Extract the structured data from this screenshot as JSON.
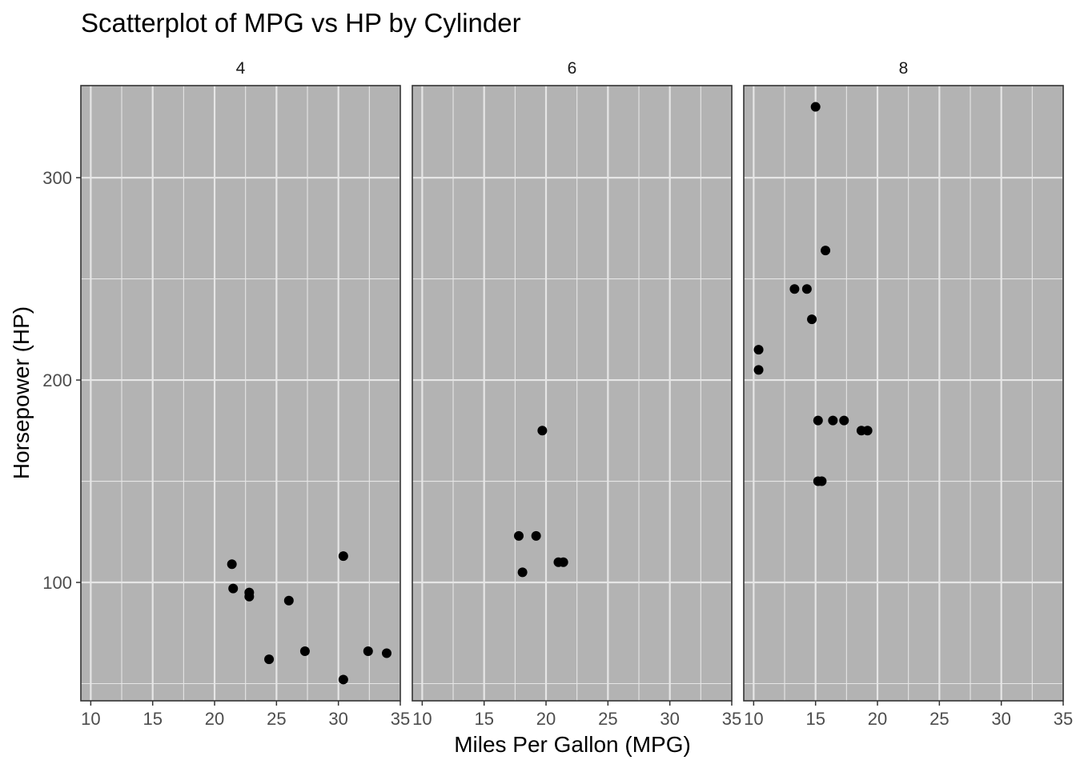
{
  "chart_data": {
    "type": "scatter",
    "title": "Scatterplot of MPG vs HP by Cylinder",
    "xlabel": "Miles Per Gallon (MPG)",
    "ylabel": "Horsepower (HP)",
    "xlim": [
      9.2,
      35.0
    ],
    "ylim": [
      41.5,
      345.5
    ],
    "x_ticks": [
      10,
      15,
      20,
      25,
      30,
      35
    ],
    "y_ticks": [
      100,
      200,
      300
    ],
    "grid": true,
    "colors": {
      "panel": "#b3b3b3",
      "grid": "#e6e6e6",
      "point": "#000000"
    },
    "facets": [
      {
        "label": "4",
        "points": [
          {
            "x": 22.8,
            "y": 93
          },
          {
            "x": 24.4,
            "y": 62
          },
          {
            "x": 22.8,
            "y": 95
          },
          {
            "x": 32.4,
            "y": 66
          },
          {
            "x": 30.4,
            "y": 52
          },
          {
            "x": 33.9,
            "y": 65
          },
          {
            "x": 21.5,
            "y": 97
          },
          {
            "x": 27.3,
            "y": 66
          },
          {
            "x": 26.0,
            "y": 91
          },
          {
            "x": 30.4,
            "y": 113
          },
          {
            "x": 21.4,
            "y": 109
          }
        ]
      },
      {
        "label": "6",
        "points": [
          {
            "x": 21.0,
            "y": 110
          },
          {
            "x": 21.4,
            "y": 110
          },
          {
            "x": 18.1,
            "y": 105
          },
          {
            "x": 19.2,
            "y": 123
          },
          {
            "x": 17.8,
            "y": 123
          },
          {
            "x": 19.7,
            "y": 175
          }
        ]
      },
      {
        "label": "8",
        "points": [
          {
            "x": 18.7,
            "y": 175
          },
          {
            "x": 14.3,
            "y": 245
          },
          {
            "x": 16.4,
            "y": 180
          },
          {
            "x": 17.3,
            "y": 180
          },
          {
            "x": 15.2,
            "y": 180
          },
          {
            "x": 10.4,
            "y": 205
          },
          {
            "x": 10.4,
            "y": 215
          },
          {
            "x": 14.7,
            "y": 230
          },
          {
            "x": 15.5,
            "y": 150
          },
          {
            "x": 15.2,
            "y": 150
          },
          {
            "x": 13.3,
            "y": 245
          },
          {
            "x": 19.2,
            "y": 175
          },
          {
            "x": 15.8,
            "y": 264
          },
          {
            "x": 15.0,
            "y": 335
          }
        ]
      }
    ]
  }
}
